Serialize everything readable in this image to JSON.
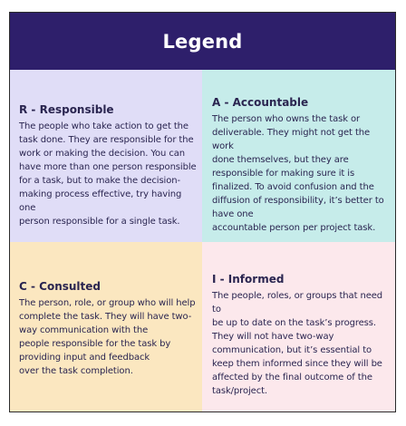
{
  "title": "Legend",
  "colors": {
    "header": "#2e1f6b",
    "responsible": "#e0ddf7",
    "accountable": "#c6ecea",
    "consulted": "#fbe7c0",
    "informed": "#fce8ec",
    "text": "#2a2550"
  },
  "quadrants": {
    "responsible": {
      "heading": "R - Responsible",
      "body": "The people who take action to get the\ntask done. They are responsible for the\nwork or making the decision. You can\nhave more than one person responsible\nfor a task, but to make the decision-\nmaking process effective, try having one\nperson responsible for a single task."
    },
    "accountable": {
      "heading": "A - Accountable",
      "body": "The person who owns the task or\ndeliverable. They might not get the work\ndone themselves, but they are\nresponsible for making sure it is\nfinalized. To avoid confusion and the\ndiffusion of responsibility, it’s better to\nhave one\naccountable person per project task."
    },
    "consulted": {
      "heading": "C - Consulted",
      "body": "The person, role, or group who will help\ncomplete the task. They will have two-\nway communication with the\npeople responsible for the task by\nproviding input and feedback\nover the task completion."
    },
    "informed": {
      "heading": "I - Informed",
      "body": "The people, roles, or groups that need to\nbe up to date on the task’s progress.\nThey will not have two-way\ncommunication, but it’s essential to\nkeep them informed since they will be\naffected by the final outcome of the\ntask/project."
    }
  }
}
